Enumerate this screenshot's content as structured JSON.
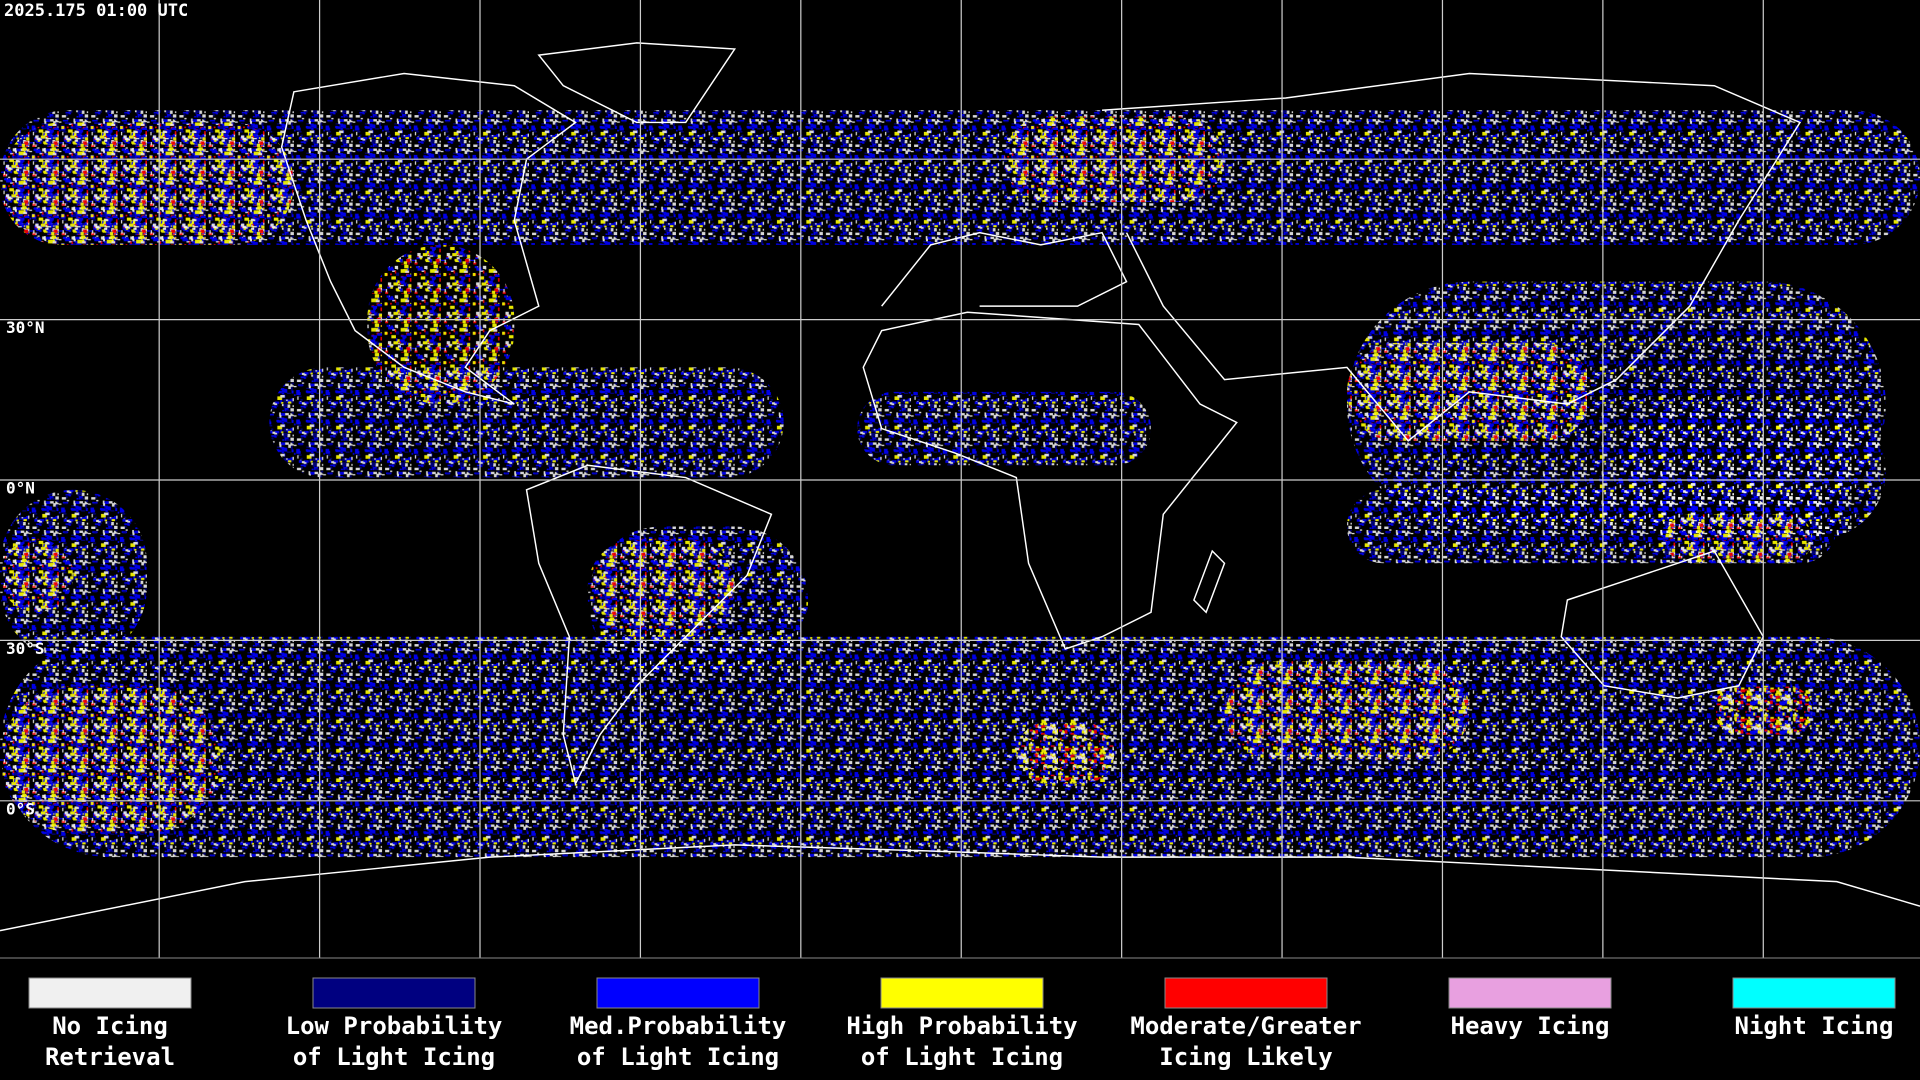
{
  "map": {
    "timestamp": "2025.175 01:00 UTC",
    "lat_labels": [
      "30°N",
      "0°N",
      "30°S",
      "0°S"
    ],
    "legend": [
      {
        "label_lines": [
          "No Icing",
          "Retrieval"
        ],
        "color": "#f0f0f0"
      },
      {
        "label_lines": [
          "Low Probability",
          "of Light Icing"
        ],
        "color": "#000080"
      },
      {
        "label_lines": [
          "Med.Probability",
          "of Light Icing"
        ],
        "color": "#0000ff"
      },
      {
        "label_lines": [
          "High Probability",
          "of Light Icing"
        ],
        "color": "#ffff00"
      },
      {
        "label_lines": [
          "Moderate/Greater",
          "Icing Likely"
        ],
        "color": "#ff0000"
      },
      {
        "label_lines": [
          "Heavy Icing"
        ],
        "color": "#e8a0e0"
      },
      {
        "label_lines": [
          "Night Icing"
        ],
        "color": "#00ffff"
      }
    ]
  }
}
